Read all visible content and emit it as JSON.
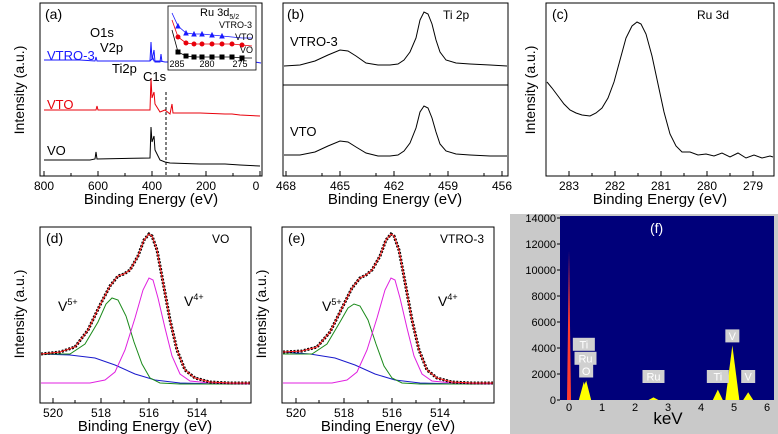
{
  "figure": {
    "panels": [
      {
        "id": "a",
        "label": "(a)",
        "xlabel": "Binding Energy (eV)",
        "ylabel": "Intensity (a.u.)",
        "xlim": [
          800,
          0
        ],
        "xticks": [
          "800",
          "700",
          "600",
          "500",
          "400",
          "300",
          "200",
          "100",
          "0"
        ]
      },
      {
        "id": "b",
        "label": "(b)",
        "title": "Ti 2p",
        "xlabel": "Binding Energy (eV)",
        "xlim": [
          468,
          454
        ],
        "xticks": [
          "468",
          "465",
          "462",
          "459",
          "456"
        ]
      },
      {
        "id": "c",
        "label": "(c)",
        "title": "Ru 3d",
        "xlabel": "Binding Energy (eV)",
        "ylabel": "Intensity (a.u.)",
        "xlim": [
          283.5,
          278.5
        ],
        "xticks": [
          "283",
          "282",
          "281",
          "280",
          "279"
        ]
      },
      {
        "id": "d",
        "label": "(d)",
        "title": "VO",
        "xlabel": "Binding Energy (eV)",
        "ylabel": "Intensity (a.u.)",
        "xlim": [
          520.5,
          512.5
        ],
        "xticks": [
          "520",
          "518",
          "516",
          "514"
        ]
      },
      {
        "id": "e",
        "label": "(e)",
        "title": "VTRO-3",
        "xlabel": "Binding Energy (eV)",
        "ylabel": "Intensity (a.u.)",
        "xlim": [
          520.5,
          512.5
        ],
        "xticks": [
          "520",
          "518",
          "516",
          "514"
        ]
      },
      {
        "id": "f",
        "label": "(f)",
        "xlabel": "keV",
        "xlim": [
          -0.5,
          6.5
        ],
        "xticks": [
          "0",
          "1",
          "2",
          "3",
          "4",
          "5",
          "6"
        ],
        "yticks": [
          "0",
          "2000",
          "4000",
          "6000",
          "8000",
          "10000",
          "12000",
          "14000"
        ]
      }
    ]
  },
  "chart_data": [
    {
      "type": "line",
      "panel": "a",
      "label": "(a)",
      "xlabel": "Binding Energy (eV)",
      "ylabel": "Intensity (a.u.)",
      "xlim": [
        800,
        0
      ],
      "series": [
        {
          "name": "VTRO-3",
          "color": "#1a1aff"
        },
        {
          "name": "VTO",
          "color": "#e8000b"
        },
        {
          "name": "VO",
          "color": "#000000"
        }
      ],
      "annotations": [
        "O1s",
        "V2p",
        "Ti2p",
        "C1s"
      ],
      "inset": {
        "xticks": [
          "285",
          "280",
          "275"
        ],
        "series": [
          "VTRO-3",
          "VTO",
          "VO"
        ],
        "annotation": "Ru 3d5/2"
      }
    },
    {
      "type": "line",
      "panel": "b",
      "label": "(b)",
      "title": "Ti 2p",
      "xlabel": "Binding Energy (eV)",
      "xlim": [
        468,
        454
      ],
      "series": [
        {
          "name": "VTRO-3",
          "peaks": [
            464.2,
            458.4
          ]
        },
        {
          "name": "VTO",
          "peaks": [
            464.2,
            458.4
          ]
        }
      ]
    },
    {
      "type": "line",
      "panel": "c",
      "label": "(c)",
      "title": "Ru 3d",
      "xlabel": "Binding Energy (eV)",
      "ylabel": "Intensity (a.u.)",
      "xlim": [
        283.5,
        278.5
      ],
      "series": [
        {
          "name": "",
          "peaks": [
            281.4
          ]
        }
      ]
    },
    {
      "type": "line",
      "panel": "d",
      "label": "(d)",
      "title": "VO",
      "xlabel": "Binding Energy (eV)",
      "ylabel": "Intensity (a.u.)",
      "xlim": [
        520.5,
        512.5
      ],
      "components": [
        {
          "label": "V5+",
          "center": 517.2,
          "color": "#1a8a1a"
        },
        {
          "label": "V4+",
          "center": 516.1,
          "color": "#e020e0"
        },
        {
          "label": "",
          "color": "#1a1acc"
        },
        {
          "label": "",
          "color": "#ff2020"
        }
      ]
    },
    {
      "type": "line",
      "panel": "e",
      "label": "(e)",
      "title": "VTRO-3",
      "xlabel": "Binding Energy (eV)",
      "ylabel": "Intensity (a.u.)",
      "xlim": [
        520.5,
        512.5
      ],
      "components": [
        {
          "label": "V5+",
          "center": 517.3,
          "color": "#1a8a1a"
        },
        {
          "label": "V4+",
          "center": 516.1,
          "color": "#e020e0"
        },
        {
          "label": "",
          "color": "#1a1acc"
        },
        {
          "label": "",
          "color": "#ff2020"
        }
      ]
    },
    {
      "type": "bar",
      "panel": "f",
      "label": "(f)",
      "xlabel": "keV",
      "xlim": [
        -0.5,
        6.5
      ],
      "ylim": [
        0,
        14000
      ],
      "peaks": [
        {
          "label": "",
          "x": 0.0,
          "y": 11500
        },
        {
          "label": "Ti",
          "x": 0.45,
          "y": 1400
        },
        {
          "label": "Ru",
          "x": 0.5,
          "y": 1400
        },
        {
          "label": "O",
          "x": 0.52,
          "y": 1500
        },
        {
          "label": "Ru",
          "x": 2.56,
          "y": 200
        },
        {
          "label": "Ti",
          "x": 4.51,
          "y": 800
        },
        {
          "label": "V",
          "x": 4.95,
          "y": 4200
        },
        {
          "label": "V",
          "x": 5.43,
          "y": 600
        }
      ],
      "colors": {
        "background": "#00007a",
        "bars": "#ffff00",
        "tags": "#d0d0d0"
      }
    }
  ]
}
